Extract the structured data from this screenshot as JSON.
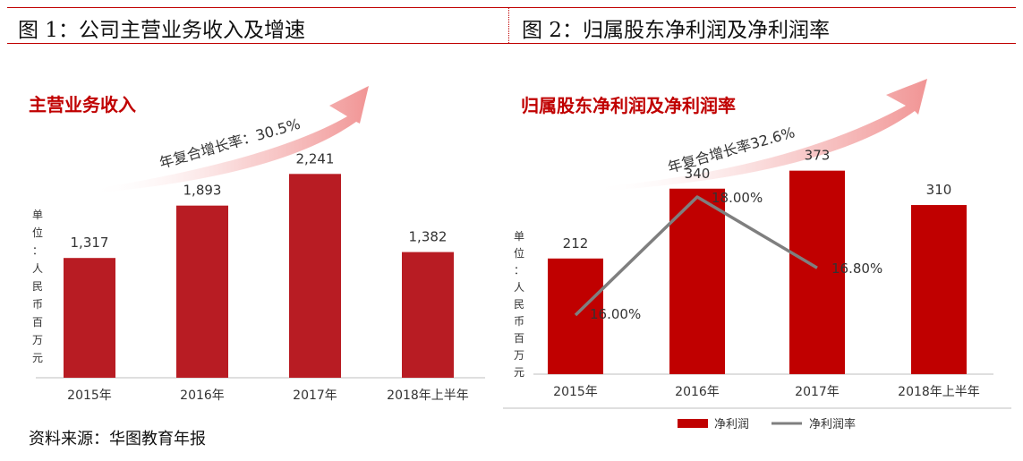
{
  "header": {
    "figure1_title": "图 1：公司主营业务收入及增速",
    "figure2_title": "图 2：归属股东净利润及净利润率"
  },
  "source": "资料来源：华图教育年报",
  "colors": {
    "bar": "#b81c23",
    "bar2": "#c00000",
    "line": "#7f7f7f",
    "accent": "#c00000"
  },
  "chart_data": [
    {
      "type": "bar",
      "title": "主营业务收入",
      "growth_annotation": "年复合增长率：30.5%",
      "ylabel": "单位：人民币百万元",
      "categories": [
        "2015年",
        "2016年",
        "2017年",
        "2018年上半年"
      ],
      "values": [
        1317,
        1893,
        2241,
        1382
      ],
      "value_labels": [
        "1,317",
        "1,893",
        "2,241",
        "1,382"
      ],
      "ylim": [
        0,
        2500
      ],
      "grid": false
    },
    {
      "type": "bar",
      "title": "归属股东净利润及净利润率",
      "growth_annotation": "年复合增长率32.6%",
      "ylabel": "单位：人民币百万元",
      "categories": [
        "2015年",
        "2016年",
        "2017年",
        "2018年上半年"
      ],
      "series": [
        {
          "name": "净利润",
          "type": "bar",
          "values": [
            212,
            340,
            373,
            310
          ],
          "value_labels": [
            "212",
            "340",
            "373",
            "310"
          ]
        },
        {
          "name": "净利润率",
          "type": "line",
          "values": [
            16.0,
            18.0,
            16.8,
            null
          ],
          "value_labels": [
            "16.00%",
            "18.00%",
            "16.80%"
          ]
        }
      ],
      "ylim": [
        0,
        420
      ],
      "legend": "bottom",
      "grid": false
    }
  ]
}
